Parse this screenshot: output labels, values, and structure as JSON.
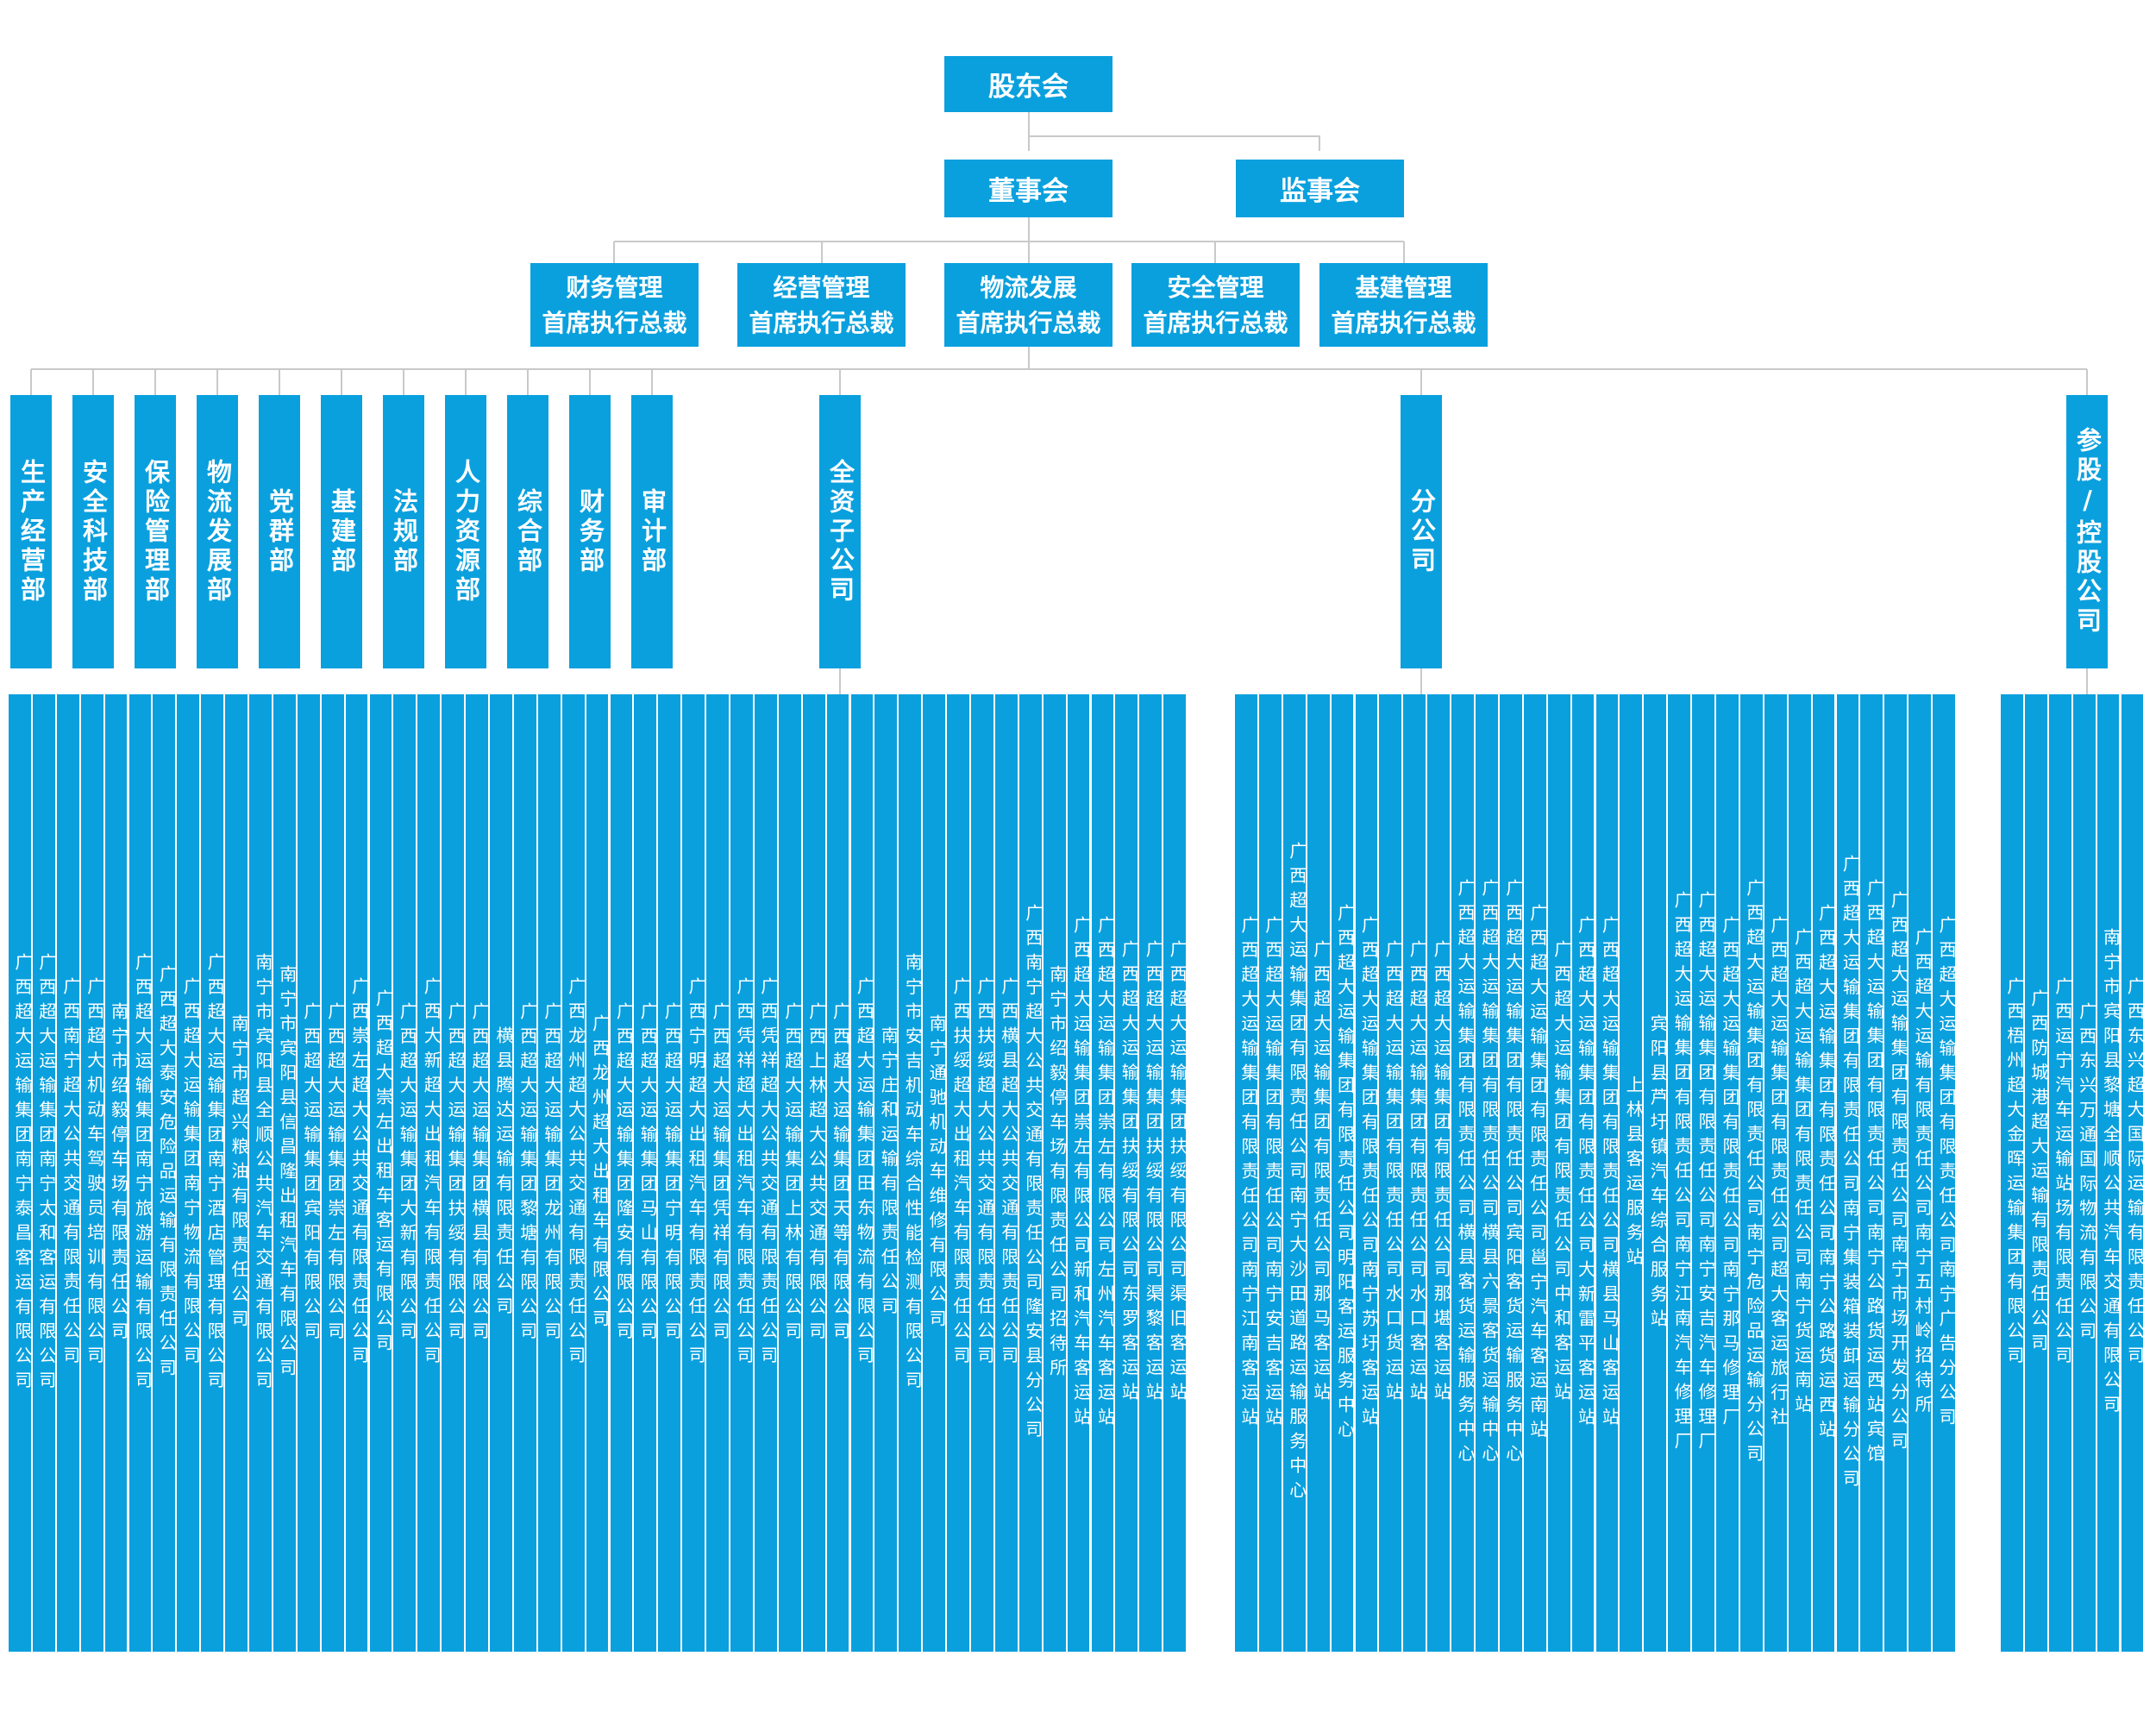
{
  "chart": {
    "shareholders": "股东会",
    "board": "董事会",
    "supervisors": "监事会",
    "executives": [
      "财务管理\n首席执行总裁",
      "经营管理\n首席执行总裁",
      "物流发展\n首席执行总裁",
      "安全管理\n首席执行总裁",
      "基建管理\n首席执行总裁"
    ],
    "departments": [
      "生产经营部",
      "安全科技部",
      "保险管理部",
      "物流发展部",
      "党群部",
      "基建部",
      "法规部",
      "人力资源部",
      "综合部",
      "财务部",
      "审计部"
    ],
    "groups": {
      "subsidiaries": "全资子公司",
      "branches": "分公司",
      "holdings": "参股/控股公司"
    },
    "subsidiaries": [
      "广西超大运输集团南宁泰昌客运有限公司",
      "广西超大运输集团南宁太和客运有限公司",
      "广西南宁超大公共交通有限责任公司",
      "广西超大机动车驾驶员培训有限公司",
      "南宁市绍毅停车场有限责任公司",
      "广西超大运输集团南宁旅游运输有限公司",
      "广西超大泰安危险品运输有限责任公司",
      "广西超大运输集团南宁物流有限公司",
      "广西超大运输集团南宁酒店管理有限公司",
      "南宁市超兴粮油有限责任公司",
      "南宁市宾阳县全顺公共汽车交通有限公司",
      "南宁市宾阳县信昌隆出租汽车有限公司",
      "广西超大运输集团宾阳有限公司",
      "广西超大运输集团崇左有限公司",
      "广西崇左超大公共交通有限责任公司",
      "广西超大崇左出租车客运有限公司",
      "广西超大运输集团大新有限公司",
      "广西大新超大出租汽车有限责任公司",
      "广西超大运输集团扶绥有限公司",
      "广西超大运输集团横县有限公司",
      "横县腾达运输有限责任公司",
      "广西超大运输集团黎塘有限公司",
      "广西超大运输集团龙州有限公司",
      "广西龙州超大公共交通有限责任公司",
      "广西龙州超大出租车有限公司",
      "广西超大运输集团隆安有限公司",
      "广西超大运输集团马山有限公司",
      "广西超大运输集团宁明有限公司",
      "广西宁明超大出租汽车有限责任公司",
      "广西超大运输集团凭祥有限公司",
      "广西凭祥超大出租汽车有限责任公司",
      "广西凭祥超大公共交通有限责任公司",
      "广西超大运输集团上林有限公司",
      "广西上林超大公共交通有限公司",
      "广西超大运输集团天等有限公司",
      "广西超大运输集团田东物流有限公司",
      "南宁庄和运输有限责任公司",
      "南宁市安吉机动车综合性能检测有限公司",
      "南宁通驰机动车维修有限公司",
      "广西扶绥超大出租汽车有限责任公司",
      "广西扶绥超大公共交通有限责任公司",
      "广西横县超大公共交通有限责任公司",
      "广西南宁超大公共交通有限责任公司隆安县分公司",
      "南宁市绍毅停车场有限责任公司招待所",
      "广西超大运输集团崇左有限公司新和汽车客运站",
      "广西超大运输集团崇左有限公司左州汽车客运站",
      "广西超大运输集团扶绥有限公司东罗客运站",
      "广西超大运输集团扶绥有限公司渠黎客运站",
      "广西超大运输集团扶绥有限公司渠旧客运站"
    ],
    "branches": [
      "广西超大运输集团有限责任公司南宁江南客运站",
      "广西超大运输集团有限责任公司南宁安吉客运站",
      "广西超大运输集团有限责任公司南宁大沙田道路运输服务中心",
      "广西超大运输集团有限责任公司那马客运站",
      "广西超大运输集团有限责任公司明阳客运服务中心",
      "广西超大运输集团有限责任公司南宁苏圩客运站",
      "广西超大运输集团有限责任公司水口货运站",
      "广西超大运输集团有限责任公司水口客运站",
      "广西超大运输集团有限责任公司那堪客运站",
      "广西超大运输集团有限责任公司横县客货运输服务中心",
      "广西超大运输集团有限责任公司横县六景客货运输中心",
      "广西超大运输集团有限责任公司宾阳客货运输服务中心",
      "广西超大运输集团有限责任公司邕宁汽车客运南站",
      "广西超大运输集团有限责任公司中和客运站",
      "广西超大运输集团有限责任公司大新雷平客运站",
      "广西超大运输集团有限责任公司横县马山客运站",
      "上林县客运服务站",
      "宾阳县芦圩镇汽车综合服务站",
      "广西超大运输集团有限责任公司南宁江南汽车修理厂",
      "广西超大运输集团有限责任公司南宁安吉汽车修理厂",
      "广西超大运输集团有限责任公司南宁那马修理厂",
      "广西超大运输集团有限责任公司南宁危险品运输分公司",
      "广西超大运输集团有限责任公司超大客运旅行社",
      "广西超大运输集团有限责任公司南宁货运南站",
      "广西超大运输集团有限责任公司南宁公路货运西站",
      "广西超大运输集团有限责任公司南宁集装箱装卸运输分公司",
      "广西超大运输集团有限责任公司南宁公路货运西站宾馆",
      "广西超大运输集团有限责任公司南宁市场开发分公司",
      "广西超大运输有限责任公司南宁五村岭招待所",
      "广西超大运输集团有限责任公司南宁广告分公司"
    ],
    "holdings": [
      "广西梧州超大金晖运输集团有限公司",
      "广西防城港超大运输有限责任公司",
      "广西运宁汽车运输站场有限责任公司",
      "广西东兴万通国际物流有限公司",
      "南宁市宾阳县黎塘全顺公共汽车交通有限公司",
      "广西东兴超大国际运输有限责任公司"
    ]
  }
}
